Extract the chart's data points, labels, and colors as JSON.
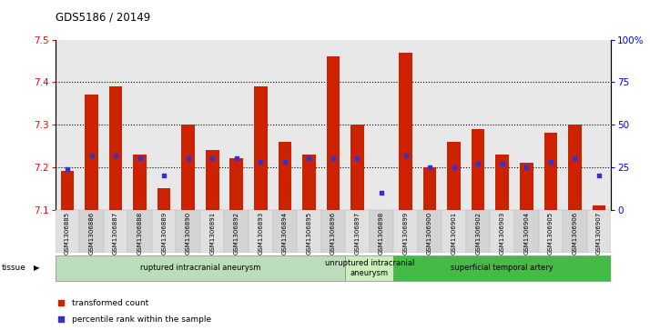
{
  "title": "GDS5186 / 20149",
  "samples": [
    "GSM1306885",
    "GSM1306886",
    "GSM1306887",
    "GSM1306888",
    "GSM1306889",
    "GSM1306890",
    "GSM1306891",
    "GSM1306892",
    "GSM1306893",
    "GSM1306894",
    "GSM1306895",
    "GSM1306896",
    "GSM1306897",
    "GSM1306898",
    "GSM1306899",
    "GSM1306900",
    "GSM1306901",
    "GSM1306902",
    "GSM1306903",
    "GSM1306904",
    "GSM1306905",
    "GSM1306906",
    "GSM1306907"
  ],
  "bar_values": [
    7.19,
    7.37,
    7.39,
    7.23,
    7.15,
    7.3,
    7.24,
    7.22,
    7.39,
    7.26,
    7.23,
    7.46,
    7.3,
    7.1,
    7.47,
    7.2,
    7.26,
    7.29,
    7.23,
    7.21,
    7.28,
    7.3,
    7.11
  ],
  "percentile_values": [
    24,
    32,
    32,
    30,
    20,
    30,
    30,
    30,
    28,
    28,
    30,
    30,
    30,
    10,
    32,
    25,
    25,
    27,
    27,
    25,
    28,
    30,
    20
  ],
  "ylim_left": [
    7.1,
    7.5
  ],
  "ylim_right": [
    0,
    100
  ],
  "yticks_left": [
    7.1,
    7.2,
    7.3,
    7.4,
    7.5
  ],
  "yticks_right": [
    0,
    25,
    50,
    75,
    100
  ],
  "ytick_labels_right": [
    "0",
    "25",
    "50",
    "75",
    "100%"
  ],
  "bar_color": "#cc2200",
  "dot_color": "#3333cc",
  "bar_bottom": 7.1,
  "bg_color": "#ffffff",
  "tissue_groups": [
    {
      "label": "ruptured intracranial aneurysm",
      "start": 0,
      "end": 12,
      "color": "#bbddbb"
    },
    {
      "label": "unruptured intracranial\naneurysm",
      "start": 12,
      "end": 14,
      "color": "#cceebb"
    },
    {
      "label": "superficial temporal artery",
      "start": 14,
      "end": 23,
      "color": "#44bb44"
    }
  ],
  "legend_items": [
    {
      "label": "transformed count",
      "color": "#cc2200"
    },
    {
      "label": "percentile rank within the sample",
      "color": "#3333cc"
    }
  ]
}
